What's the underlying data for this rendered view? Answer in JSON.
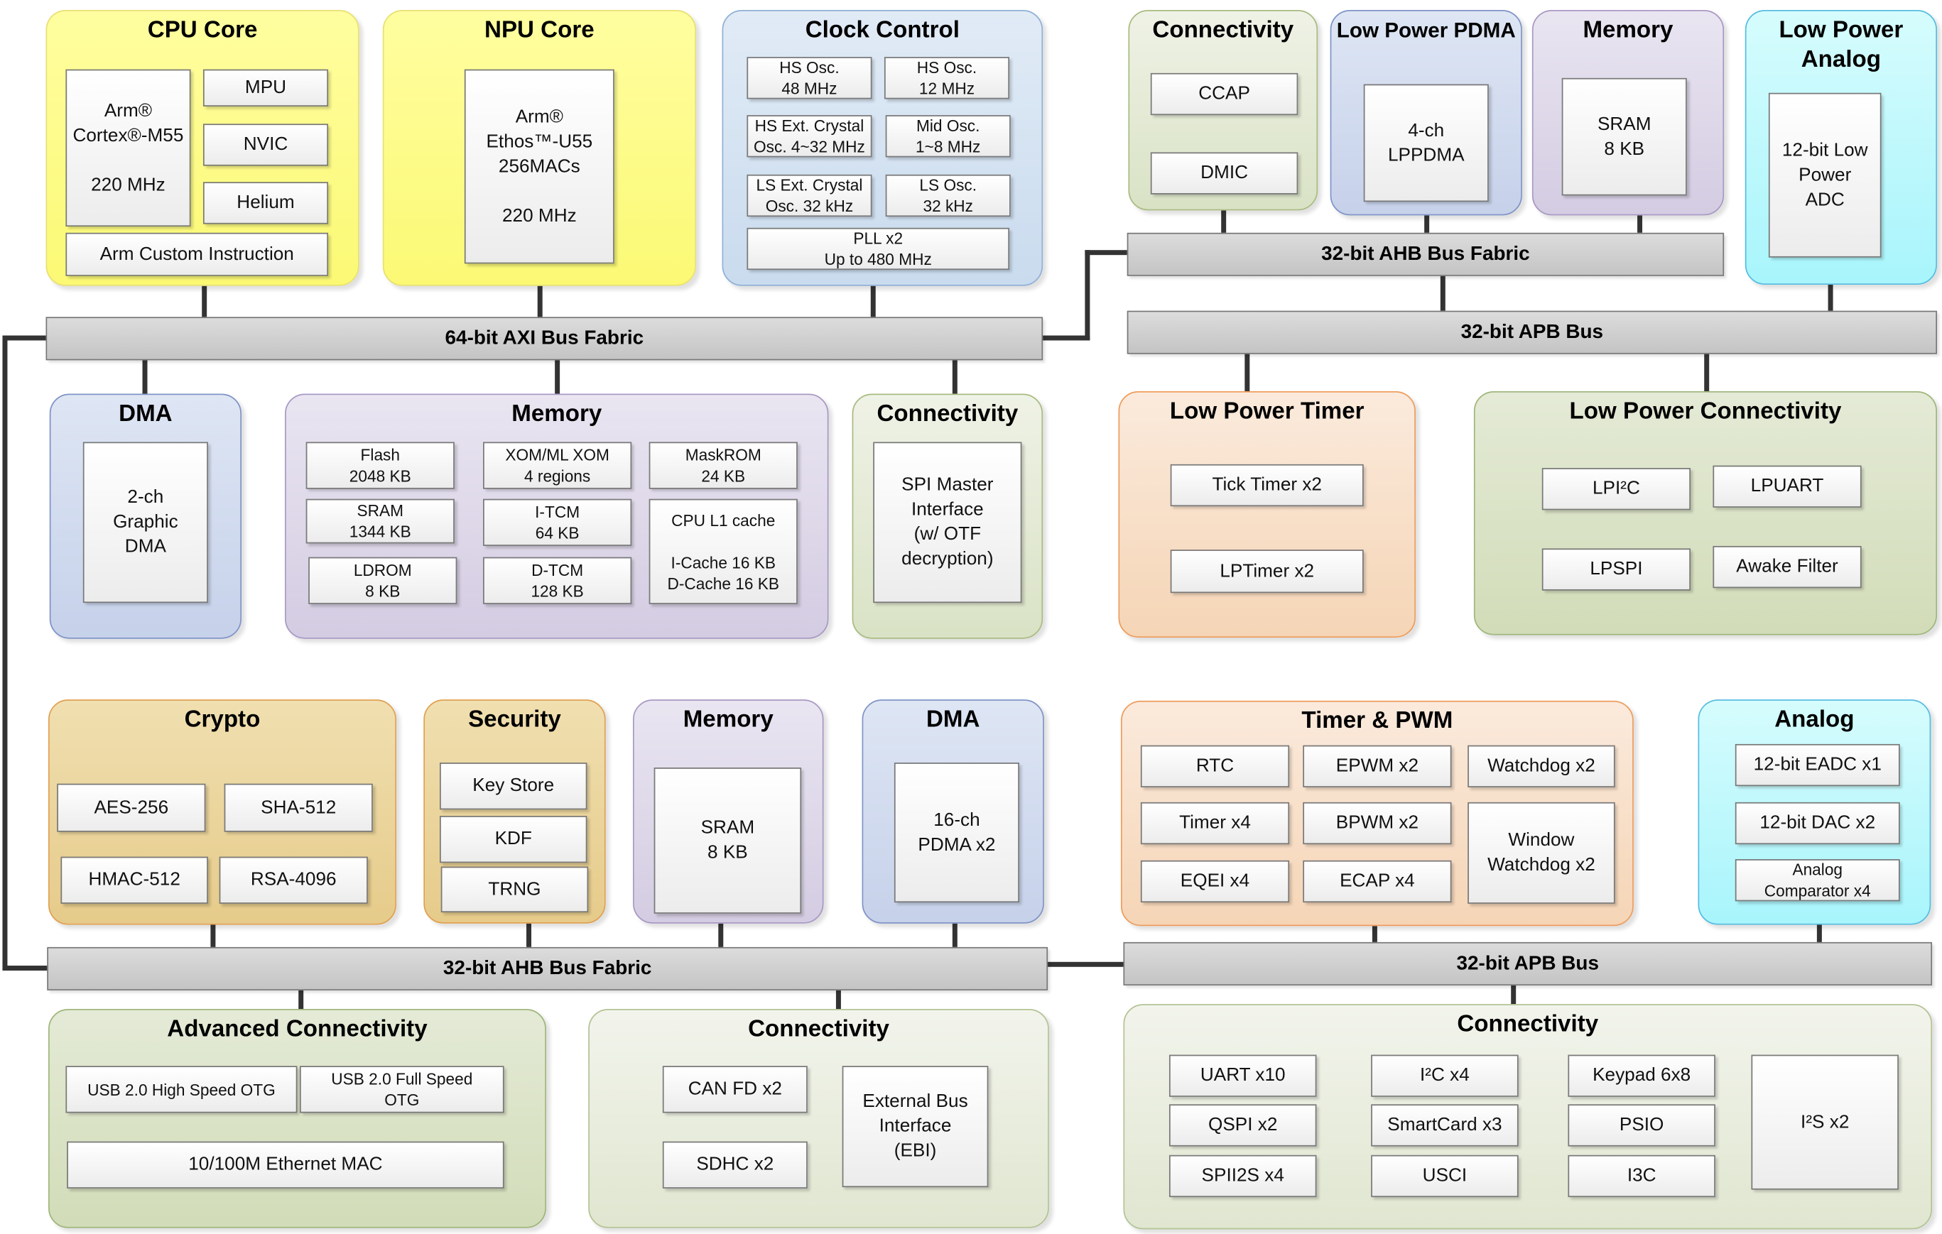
{
  "colors": {
    "cpu_npu": "#fbf974",
    "clock": "#c9dbee",
    "dma": "#c6d1ea",
    "memory": "#d4cce2",
    "connectivity": "#d9e2c5",
    "analog": "#a8f5fc",
    "timer": "#f5d5b6",
    "crypto_security": "#e6cb8a",
    "bus": "#c4c4c4"
  },
  "buses": [
    {
      "label": "64-bit AXI Bus Fabric"
    },
    {
      "label": "32-bit AHB Bus Fabric"
    },
    {
      "label": "32-bit APB Bus"
    },
    {
      "label": "32-bit AHB Bus Fabric"
    },
    {
      "label": "32-bit APB Bus"
    }
  ],
  "groups": [
    {
      "title": "CPU Core",
      "boxes": [
        "Arm®\nCortex®-M55\n\n220 MHz",
        "MPU",
        "NVIC",
        "Helium",
        "Arm Custom Instruction"
      ]
    },
    {
      "title": "NPU Core",
      "boxes": [
        "Arm®\nEthos™-U55\n256MACs\n\n220 MHz"
      ]
    },
    {
      "title": "Clock Control",
      "boxes": [
        "HS Osc.\n48 MHz",
        "HS Osc.\n12 MHz",
        "HS Ext. Crystal\nOsc. 4~32 MHz",
        "Mid Osc.\n1~8 MHz",
        "LS Ext. Crystal\nOsc. 32 kHz",
        "LS Osc.\n32 kHz",
        "PLL x2\nUp to 480 MHz"
      ]
    },
    {
      "title": "DMA",
      "boxes": [
        "2-ch\nGraphic\nDMA"
      ]
    },
    {
      "title": "Memory",
      "boxes": [
        "Flash\n2048 KB",
        "XOM/ML XOM\n4 regions",
        "MaskROM\n24 KB",
        "SRAM\n1344 KB",
        "I-TCM\n64 KB",
        "CPU L1 cache\n\nI-Cache 16 KB\nD-Cache 16 KB",
        "LDROM\n8 KB",
        "D-TCM\n128 KB"
      ]
    },
    {
      "title": "Connectivity",
      "boxes": [
        "SPI Master\nInterface\n(w/ OTF\ndecryption)"
      ]
    },
    {
      "title": "Connectivity",
      "boxes": [
        "CCAP",
        "DMIC"
      ]
    },
    {
      "title": "Low Power PDMA",
      "boxes": [
        "4-ch\nLPPDMA"
      ]
    },
    {
      "title": "Memory",
      "boxes": [
        "SRAM\n8 KB"
      ]
    },
    {
      "title": "Low Power\nAnalog",
      "boxes": [
        "12-bit Low\nPower\nADC"
      ]
    },
    {
      "title": "Low Power Timer",
      "boxes": [
        "Tick Timer x2",
        "LPTimer x2"
      ]
    },
    {
      "title": "Low Power Connectivity",
      "boxes": [
        "LPI²C",
        "LPUART",
        "LPSPI",
        "Awake Filter"
      ]
    },
    {
      "title": "Crypto",
      "boxes": [
        "AES-256",
        "SHA-512",
        "HMAC-512",
        "RSA-4096"
      ]
    },
    {
      "title": "Security",
      "boxes": [
        "Key Store",
        "KDF",
        "TRNG"
      ]
    },
    {
      "title": "Memory",
      "boxes": [
        "SRAM\n8 KB"
      ]
    },
    {
      "title": "DMA",
      "boxes": [
        "16-ch\nPDMA x2"
      ]
    },
    {
      "title": "Timer & PWM",
      "boxes": [
        "RTC",
        "EPWM x2",
        "Watchdog x2",
        "Timer x4",
        "BPWM x2",
        "Window\nWatchdog x2",
        "EQEI x4",
        "ECAP x4"
      ]
    },
    {
      "title": "Analog",
      "boxes": [
        "12-bit EADC x1",
        "12-bit DAC x2",
        "Analog\nComparator x4"
      ]
    },
    {
      "title": "Advanced Connectivity",
      "boxes": [
        "USB 2.0 High Speed OTG",
        "USB 2.0 Full Speed\nOTG",
        "10/100M Ethernet MAC"
      ]
    },
    {
      "title": "Connectivity",
      "boxes": [
        "CAN FD x2",
        "SDHC x2",
        "External Bus\nInterface\n(EBI)"
      ]
    },
    {
      "title": "Connectivity",
      "boxes": [
        "UART x10",
        "QSPI x2",
        "SPII2S x4",
        "I²C x4",
        "SmartCard x3",
        "USCI",
        "Keypad 6x8",
        "PSIO",
        "I3C",
        "I²S x2"
      ]
    }
  ]
}
